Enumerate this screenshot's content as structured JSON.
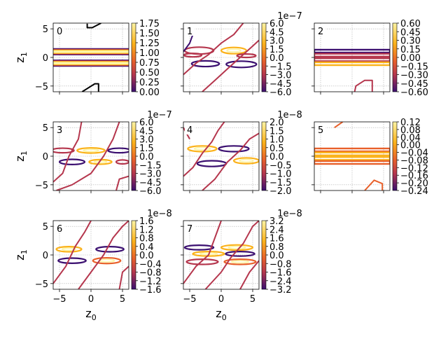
{
  "figure": {
    "x_axis_label": "z",
    "x_axis_sub": "0",
    "y_axis_label": "z",
    "y_axis_sub": "1",
    "x_ticks": [
      "−5",
      "0",
      "5"
    ],
    "y_ticks": [
      "5",
      "0",
      "−5"
    ],
    "x_range": [
      -6,
      6
    ],
    "y_range": [
      -6,
      6
    ]
  },
  "colors": {
    "grid": "#b0b0b0",
    "contour_low": "#3b0f70",
    "contour_mid": "#b5364d",
    "contour_high": "#fbb21a",
    "contour_peak": "#fcf4a4",
    "contour_orange": "#e8602a",
    "black": "#000000"
  },
  "chart_data": [
    {
      "type": "contour",
      "label": "0",
      "exponent": "",
      "colorbar_ticks": [
        "1.75",
        "1.50",
        "1.25",
        "1.00",
        "0.75",
        "0.50",
        "0.25",
        "0.00"
      ],
      "bands": [
        {
          "y": 1.0,
          "x0": -6,
          "x1": 6,
          "h": 1.0
        },
        {
          "y": -1.0,
          "x0": -6,
          "x1": 6,
          "h": 1.0
        }
      ],
      "curves": [
        {
          "color": "black",
          "points": [
            [
              -0.6,
              5.9
            ],
            [
              -0.6,
              5.2
            ],
            [
              0.2,
              5.2
            ],
            [
              1.6,
              6
            ]
          ]
        },
        {
          "color": "black",
          "points": [
            [
              -1.4,
              -6
            ],
            [
              0.6,
              -4.6
            ],
            [
              1.2,
              -4.6
            ],
            [
              1.2,
              -6
            ]
          ]
        }
      ]
    },
    {
      "type": "contour",
      "label": "1",
      "exponent": "1e−7",
      "colorbar_ticks": [
        "6.0",
        "4.5",
        "3.0",
        "1.5",
        "0.0",
        "−1.5",
        "−3.0",
        "−4.5",
        "−6.0"
      ],
      "ellipses": [
        {
          "cx": -3.5,
          "cy": 1.2,
          "rx": 2.3,
          "ry": 0.6,
          "color": "contour_mid"
        },
        {
          "cx": 2.0,
          "cy": 1.2,
          "rx": 2.0,
          "ry": 0.55,
          "color": "contour_high"
        },
        {
          "cx": -2.5,
          "cy": -1.1,
          "rx": 2.2,
          "ry": 0.5,
          "color": "contour_low"
        },
        {
          "cx": 3.2,
          "cy": -1.2,
          "rx": 2.4,
          "ry": 0.55,
          "color": "contour_low"
        },
        {
          "cx": -4.5,
          "cy": 0.4,
          "rx": 1.4,
          "ry": 0.3,
          "color": "contour_mid"
        },
        {
          "cx": 4.0,
          "cy": 0.3,
          "rx": 1.5,
          "ry": 0.3,
          "color": "contour_mid"
        }
      ],
      "curves": [
        {
          "color": "contour_mid",
          "points": [
            [
              -6,
              -3
            ],
            [
              -4,
              -1
            ],
            [
              -2,
              0.5
            ],
            [
              0,
              2.5
            ],
            [
              2,
              4
            ],
            [
              3.5,
              6
            ]
          ]
        },
        {
          "color": "contour_mid",
          "points": [
            [
              -3,
              -6
            ],
            [
              -1,
              -4
            ],
            [
              1,
              -2
            ],
            [
              3,
              0
            ],
            [
              5,
              2
            ],
            [
              6,
              3
            ]
          ]
        },
        {
          "color": "contour_low",
          "points": [
            [
              -6,
              1
            ],
            [
              -5,
              2.5
            ],
            [
              -4.5,
              4
            ]
          ]
        }
      ]
    },
    {
      "type": "contour",
      "label": "2",
      "exponent": "",
      "colorbar_ticks": [
        "0.60",
        "0.45",
        "0.30",
        "0.15",
        "0.00",
        "−0.15",
        "−0.30",
        "−0.45",
        "−0.60"
      ],
      "bands": [
        {
          "y": 1.1,
          "x0": -6,
          "x1": 6,
          "h": 0.5,
          "color": "contour_low"
        },
        {
          "y": 0.4,
          "x0": -6,
          "x1": 6,
          "h": 0.5,
          "color": "contour_mid"
        },
        {
          "y": -0.4,
          "x0": -6,
          "x1": 6,
          "h": 0.5,
          "color": "contour_mid"
        },
        {
          "y": -1.1,
          "x0": -6,
          "x1": 6,
          "h": 0.5,
          "color": "contour_high"
        }
      ],
      "curves": [
        {
          "color": "contour_mid",
          "points": [
            [
              0.4,
              -6
            ],
            [
              0.6,
              -5
            ],
            [
              2,
              -4
            ],
            [
              3.2,
              -4
            ],
            [
              3.2,
              -6
            ]
          ]
        }
      ]
    },
    {
      "type": "contour",
      "label": "3",
      "exponent": "1e−7",
      "colorbar_ticks": [
        "6.0",
        "4.5",
        "3.0",
        "1.5",
        "0.0",
        "−1.5",
        "−3.0",
        "−4.5",
        "−6.0"
      ],
      "ellipses": [
        {
          "cx": -4.5,
          "cy": 1.0,
          "rx": 1.8,
          "ry": 0.4,
          "color": "contour_mid"
        },
        {
          "cx": 0.0,
          "cy": 1.0,
          "rx": 2.2,
          "ry": 0.45,
          "color": "contour_high"
        },
        {
          "cx": 4.5,
          "cy": 1.0,
          "rx": 1.8,
          "ry": 0.4,
          "color": "contour_low"
        },
        {
          "cx": -3.0,
          "cy": -1.0,
          "rx": 2.0,
          "ry": 0.45,
          "color": "contour_low"
        },
        {
          "cx": 1.5,
          "cy": -1.0,
          "rx": 1.8,
          "ry": 0.4,
          "color": "contour_high"
        },
        {
          "cx": 5.0,
          "cy": -1.0,
          "rx": 1.0,
          "ry": 0.35,
          "color": "contour_mid"
        }
      ],
      "curves": [
        {
          "color": "contour_mid",
          "points": [
            [
              -6,
              -4.5
            ],
            [
              -4.5,
              -3
            ],
            [
              -3.5,
              0
            ],
            [
              -2,
              3
            ],
            [
              -1.5,
              6
            ]
          ]
        },
        {
          "color": "contour_mid",
          "points": [
            [
              -5.5,
              -6
            ],
            [
              -3,
              -5
            ],
            [
              0,
              -3
            ],
            [
              2,
              0
            ],
            [
              3.5,
              3
            ],
            [
              4.5,
              6
            ]
          ]
        },
        {
          "color": "contour_mid",
          "points": [
            [
              4,
              -6
            ],
            [
              4.5,
              -4
            ],
            [
              6,
              -3.5
            ]
          ]
        }
      ]
    },
    {
      "type": "contour",
      "label": "4",
      "exponent": "1e−8",
      "colorbar_ticks": [
        "2.0",
        "1.5",
        "1.0",
        "0.5",
        "0.0",
        "−0.5",
        "−1.0",
        "−1.5",
        "−2.0"
      ],
      "ellipses": [
        {
          "cx": -3.0,
          "cy": 1.3,
          "rx": 2.3,
          "ry": 0.5,
          "color": "contour_high"
        },
        {
          "cx": 2.0,
          "cy": 1.3,
          "rx": 2.4,
          "ry": 0.5,
          "color": "contour_low"
        },
        {
          "cx": -1.5,
          "cy": -1.3,
          "rx": 2.3,
          "ry": 0.5,
          "color": "contour_low"
        },
        {
          "cx": 4.0,
          "cy": -0.8,
          "rx": 2.0,
          "ry": 0.5,
          "color": "contour_high"
        }
      ],
      "curves": [
        {
          "color": "contour_mid",
          "points": [
            [
              -6,
              -3.5
            ],
            [
              -4.5,
              -2
            ],
            [
              -3,
              0.5
            ],
            [
              -1.5,
              2.5
            ],
            [
              -0.5,
              4.5
            ],
            [
              0.5,
              6
            ]
          ]
        },
        {
          "color": "contour_mid",
          "points": [
            [
              -3,
              -6
            ],
            [
              -1,
              -4
            ],
            [
              1,
              -1
            ],
            [
              3,
              1
            ],
            [
              4.5,
              3
            ],
            [
              6,
              4
            ]
          ]
        },
        {
          "color": "contour_mid",
          "points": [
            [
              -5,
              3
            ],
            [
              -6,
              5
            ]
          ]
        }
      ]
    },
    {
      "type": "contour",
      "label": "5",
      "exponent": "",
      "colorbar_ticks": [
        "0.12",
        "0.08",
        "0.04",
        "0.00",
        "−0.04",
        "−0.08",
        "−0.12",
        "−0.16",
        "−0.20",
        "−0.24"
      ],
      "bands": [
        {
          "y": 1.1,
          "x0": -6,
          "x1": 6,
          "h": 0.5,
          "color": "contour_orange"
        },
        {
          "y": 0.4,
          "x0": -6,
          "x1": 6,
          "h": 0.5,
          "color": "contour_high"
        },
        {
          "y": -0.4,
          "x0": -6,
          "x1": 6,
          "h": 0.5,
          "color": "contour_high"
        },
        {
          "y": -1.1,
          "x0": -6,
          "x1": 6,
          "h": 0.5,
          "color": "contour_orange"
        }
      ],
      "curves": [
        {
          "color": "contour_orange",
          "points": [
            [
              -2.8,
              5
            ],
            [
              -1.5,
              6
            ]
          ]
        },
        {
          "color": "contour_orange",
          "points": [
            [
              2,
              -6
            ],
            [
              3.5,
              -4.2
            ],
            [
              4.8,
              -4.8
            ],
            [
              4.8,
              -6
            ]
          ]
        }
      ]
    },
    {
      "type": "contour",
      "label": "6",
      "exponent": "1e−8",
      "colorbar_ticks": [
        "1.6",
        "1.2",
        "0.8",
        "0.4",
        "0.0",
        "−0.4",
        "−0.8",
        "−1.2",
        "−1.6"
      ],
      "ellipses": [
        {
          "cx": -3.5,
          "cy": 1.0,
          "rx": 2.0,
          "ry": 0.45,
          "color": "contour_high"
        },
        {
          "cx": 3.0,
          "cy": 1.0,
          "rx": 2.2,
          "ry": 0.45,
          "color": "contour_low"
        },
        {
          "cx": -3.0,
          "cy": -1.0,
          "rx": 2.2,
          "ry": 0.45,
          "color": "contour_low"
        },
        {
          "cx": 2.5,
          "cy": -1.0,
          "rx": 2.2,
          "ry": 0.5,
          "color": "contour_orange"
        }
      ],
      "curves": [
        {
          "color": "contour_mid",
          "points": [
            [
              -6,
              -5
            ],
            [
              -4,
              -2
            ],
            [
              -2.5,
              1.5
            ],
            [
              -1,
              4
            ],
            [
              0,
              6
            ]
          ]
        },
        {
          "color": "contour_mid",
          "points": [
            [
              -2,
              -6
            ],
            [
              0,
              -3
            ],
            [
              2,
              0
            ],
            [
              3.5,
              3
            ],
            [
              5,
              5
            ],
            [
              6,
              6
            ]
          ]
        },
        {
          "color": "contour_mid",
          "points": [
            [
              4.5,
              -6
            ],
            [
              5,
              -3
            ],
            [
              6,
              -2
            ]
          ]
        }
      ]
    },
    {
      "type": "contour",
      "label": "7",
      "exponent": "1e−8",
      "colorbar_ticks": [
        "3.2",
        "2.4",
        "1.6",
        "0.8",
        "0.0",
        "−0.8",
        "−1.6",
        "−2.4",
        "−3.2"
      ],
      "ellipses": [
        {
          "cx": -3.5,
          "cy": 1.3,
          "rx": 2.3,
          "ry": 0.4,
          "color": "contour_low"
        },
        {
          "cx": 2.5,
          "cy": 1.3,
          "rx": 2.5,
          "ry": 0.45,
          "color": "contour_high"
        },
        {
          "cx": -2.0,
          "cy": 0.2,
          "rx": 2.5,
          "ry": 0.4,
          "color": "contour_high"
        },
        {
          "cx": 3.0,
          "cy": 0.2,
          "rx": 2.3,
          "ry": 0.4,
          "color": "contour_low"
        },
        {
          "cx": -3.0,
          "cy": -1.2,
          "rx": 2.5,
          "ry": 0.45,
          "color": "contour_mid"
        },
        {
          "cx": 3.0,
          "cy": -1.2,
          "rx": 2.5,
          "ry": 0.45,
          "color": "contour_orange"
        }
      ],
      "curves": [
        {
          "color": "contour_mid",
          "points": [
            [
              -6,
              -5
            ],
            [
              -4,
              -2
            ],
            [
              -2,
              0
            ],
            [
              -1,
              3
            ],
            [
              0,
              6
            ]
          ]
        },
        {
          "color": "contour_mid",
          "points": [
            [
              -2.5,
              -6
            ],
            [
              0,
              -3
            ],
            [
              1.5,
              -0.5
            ],
            [
              3.5,
              2
            ],
            [
              5,
              5
            ],
            [
              6,
              6
            ]
          ]
        },
        {
          "color": "contour_mid",
          "points": [
            [
              3,
              -6
            ],
            [
              4.5,
              -3
            ],
            [
              6,
              -1
            ]
          ]
        }
      ]
    }
  ]
}
